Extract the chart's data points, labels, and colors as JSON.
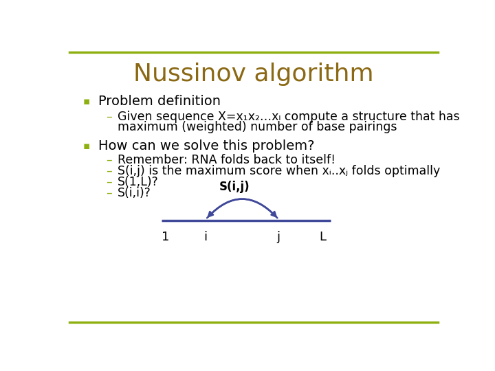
{
  "title": "Nussinov algorithm",
  "title_color": "#8B6914",
  "title_fontsize": 26,
  "bg_color": "#FFFFFF",
  "border_color": "#8DB010",
  "bullet_color": "#8DB010",
  "dash_color": "#8DB010",
  "text_color": "#000000",
  "bullet1": "Problem definition",
  "sub1_1_line1": "Given sequence X=x₁x₂…xₗ compute a structure that has",
  "sub1_1_line2": "maximum (weighted) number of base pairings",
  "bullet2": "How can we solve this problem?",
  "sub2_1": "Remember: RNA folds back to itself!",
  "sub2_2": "S(i,j) is the maximum score when xᵢ..xⱼ folds optimally",
  "sub2_3": "S(1,L)?",
  "sub2_4": "S(i,i)?",
  "diagram_label": "S(i,j)",
  "diagram_ticks": [
    "1",
    "i",
    "j",
    "L"
  ],
  "line_color": "#3F4899",
  "arc_color": "#3F4899",
  "font_family": "DejaVu Sans"
}
